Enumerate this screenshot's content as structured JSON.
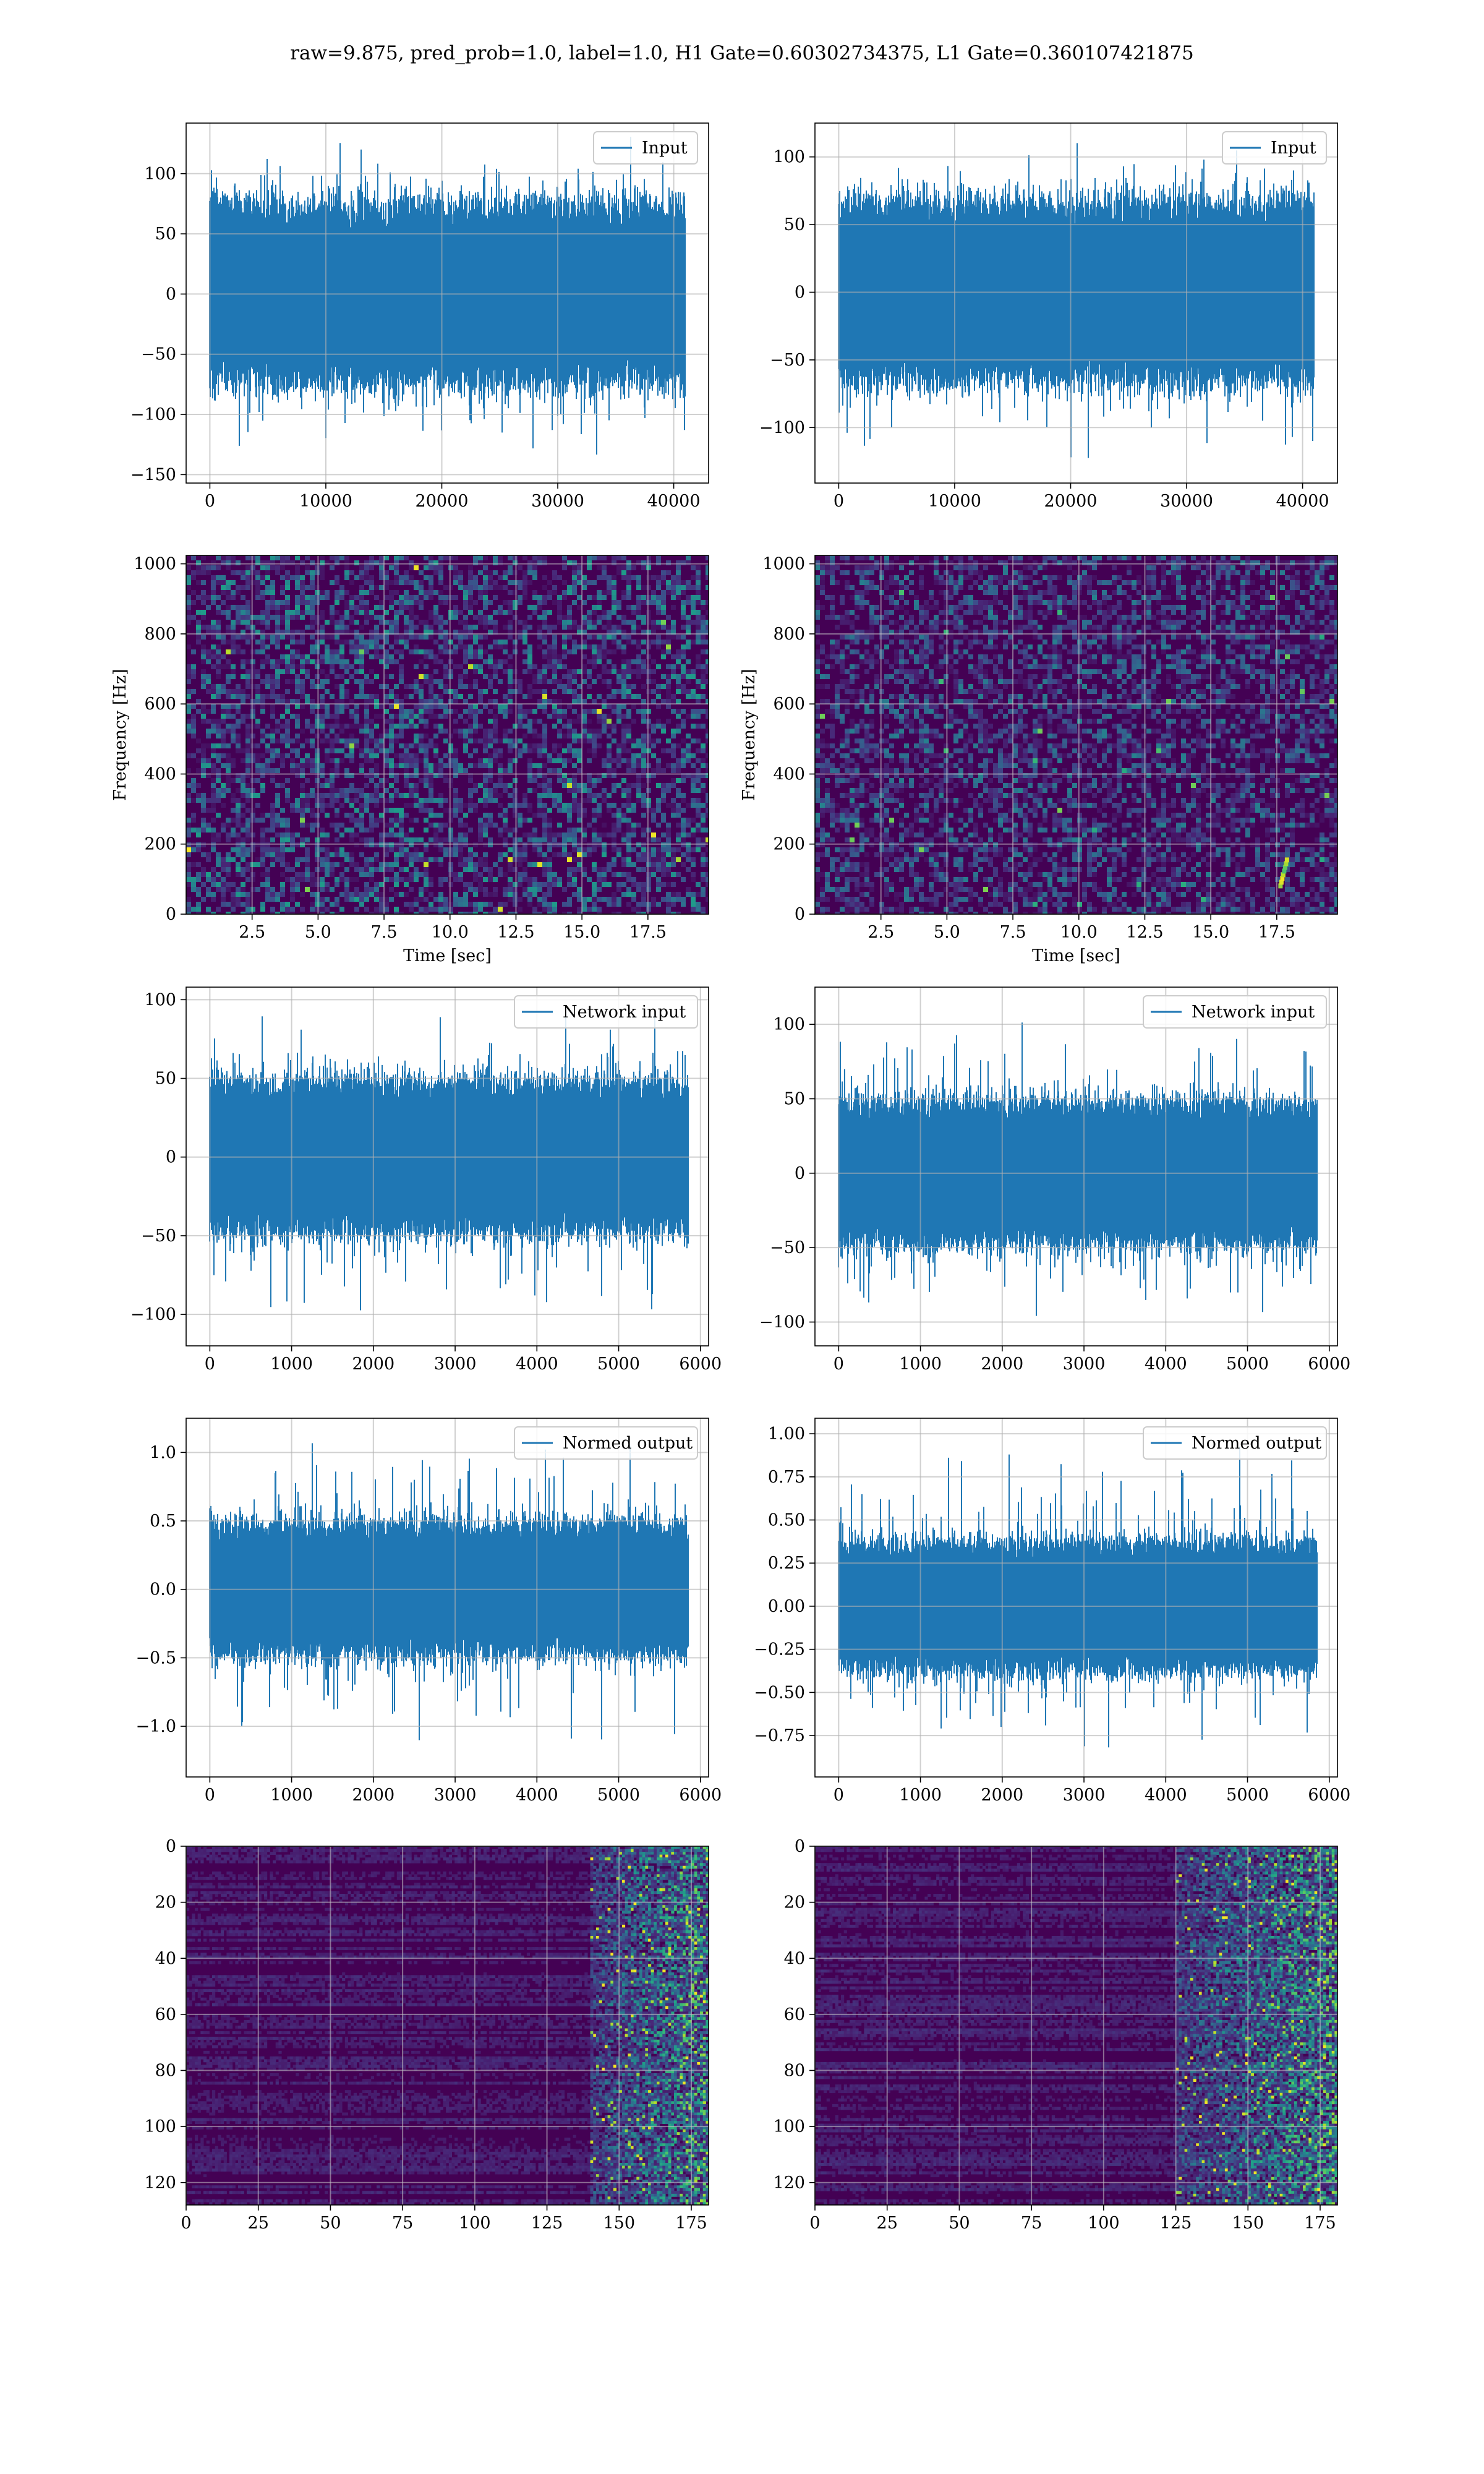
{
  "figure": {
    "suptitle": "raw=9.875, pred_prob=1.0, label=1.0, H1 Gate=0.60302734375, L1 Gate=0.360107421875",
    "colors": {
      "line": "#1f77b4",
      "grid": "#b0b0b0",
      "viridis_low": "#440154",
      "viridis_mid": "#21918c",
      "viridis_high": "#fde725"
    }
  },
  "chart_data": [
    {
      "type": "line",
      "row": 1,
      "col": 1,
      "name": "input-h1",
      "series": [
        {
          "name": "Input"
        }
      ],
      "legend": "top-right",
      "xlim": [
        -2048,
        43008
      ],
      "xticks": [
        0,
        10000,
        20000,
        30000,
        40000
      ],
      "ylim": [
        -157,
        142
      ],
      "yticks": [
        -150,
        -100,
        -50,
        0,
        50,
        100
      ],
      "signal": {
        "n": 40960,
        "envelope": [
          -70,
          70
        ],
        "extremes": [
          -145,
          134
        ]
      },
      "grid": true
    },
    {
      "type": "line",
      "row": 1,
      "col": 2,
      "name": "input-l1",
      "series": [
        {
          "name": "Input"
        }
      ],
      "legend": "top-right",
      "xlim": [
        -2048,
        43008
      ],
      "xticks": [
        0,
        10000,
        20000,
        30000,
        40000
      ],
      "ylim": [
        -141,
        125
      ],
      "yticks": [
        -100,
        -50,
        0,
        50,
        100
      ],
      "signal": {
        "n": 40960,
        "envelope": [
          -62,
          62
        ],
        "extremes": [
          -130,
          117
        ]
      },
      "grid": true
    },
    {
      "type": "heatmap",
      "row": 2,
      "col": 1,
      "name": "spectrogram-h1",
      "xlabel": "Time [sec]",
      "ylabel": "Frequency [Hz]",
      "xlim": [
        0,
        19.8
      ],
      "xticks": [
        2.5,
        5.0,
        7.5,
        10.0,
        12.5,
        15.0,
        17.5
      ],
      "ylim": [
        0,
        1024
      ],
      "yticks": [
        0,
        200,
        400,
        600,
        800,
        1000
      ],
      "colormap": "viridis",
      "grid": true
    },
    {
      "type": "heatmap",
      "row": 2,
      "col": 2,
      "name": "spectrogram-l1",
      "xlabel": "Time [sec]",
      "ylabel": "Frequency [Hz]",
      "xlim": [
        0,
        19.8
      ],
      "xticks": [
        2.5,
        5.0,
        7.5,
        10.0,
        12.5,
        15.0,
        17.5
      ],
      "ylim": [
        0,
        1024
      ],
      "yticks": [
        0,
        200,
        400,
        600,
        800,
        1000
      ],
      "colormap": "viridis",
      "grid": true,
      "hotspots": [
        {
          "t": 17.7,
          "f": 70
        }
      ]
    },
    {
      "type": "line",
      "row": 3,
      "col": 1,
      "name": "network-input-h1",
      "series": [
        {
          "name": "Network input"
        }
      ],
      "legend": "top-right",
      "xlim": [
        -290,
        6100
      ],
      "xticks": [
        0,
        1000,
        2000,
        3000,
        4000,
        5000,
        6000
      ],
      "ylim": [
        -120,
        108
      ],
      "yticks": [
        -100,
        -50,
        0,
        50,
        100
      ],
      "signal": {
        "n": 5850,
        "envelope": [
          -45,
          45
        ],
        "extremes": [
          -110,
          100
        ]
      },
      "grid": true
    },
    {
      "type": "line",
      "row": 3,
      "col": 2,
      "name": "network-input-l1",
      "series": [
        {
          "name": "Network input"
        }
      ],
      "legend": "top-right",
      "xlim": [
        -290,
        6100
      ],
      "xticks": [
        0,
        1000,
        2000,
        3000,
        4000,
        5000,
        6000
      ],
      "ylim": [
        -116,
        125
      ],
      "yticks": [
        -100,
        -50,
        0,
        50,
        100
      ],
      "signal": {
        "n": 5850,
        "envelope": [
          -45,
          45
        ],
        "extremes": [
          -106,
          105
        ]
      },
      "grid": true
    },
    {
      "type": "line",
      "row": 4,
      "col": 1,
      "name": "normed-output-h1",
      "series": [
        {
          "name": "Normed output"
        }
      ],
      "legend": "top-right",
      "xlim": [
        -290,
        6100
      ],
      "xticks": [
        0,
        1000,
        2000,
        3000,
        4000,
        5000,
        6000
      ],
      "ylim": [
        -1.37,
        1.25
      ],
      "yticks": [
        -1.0,
        -0.5,
        0.0,
        0.5,
        1.0
      ],
      "signal": {
        "n": 5850,
        "envelope": [
          -0.45,
          0.45
        ],
        "extremes": [
          -1.23,
          1.12
        ]
      },
      "grid": true
    },
    {
      "type": "line",
      "row": 4,
      "col": 2,
      "name": "normed-output-l1",
      "series": [
        {
          "name": "Normed output"
        }
      ],
      "legend": "top-right",
      "xlim": [
        -290,
        6100
      ],
      "xticks": [
        0,
        1000,
        2000,
        3000,
        4000,
        5000,
        6000
      ],
      "ylim": [
        -0.99,
        1.09
      ],
      "yticks": [
        -0.75,
        -0.5,
        -0.25,
        0.0,
        0.25,
        0.5,
        0.75,
        1.0
      ],
      "signal": {
        "n": 5850,
        "envelope": [
          -0.35,
          0.35
        ],
        "extremes": [
          -0.9,
          1.01
        ]
      },
      "grid": true
    },
    {
      "type": "heatmap",
      "row": 5,
      "col": 1,
      "name": "feature-map-h1",
      "xlim": [
        0,
        181
      ],
      "xticks": [
        0,
        25,
        50,
        75,
        100,
        125,
        150,
        175
      ],
      "ylim": [
        128,
        0
      ],
      "yticks": [
        0,
        20,
        40,
        60,
        80,
        100,
        120
      ],
      "colormap": "viridis",
      "grid": true,
      "hot_columns": [
        140,
        181
      ]
    },
    {
      "type": "heatmap",
      "row": 5,
      "col": 2,
      "name": "feature-map-l1",
      "xlim": [
        0,
        181
      ],
      "xticks": [
        0,
        25,
        50,
        75,
        100,
        125,
        150,
        175
      ],
      "ylim": [
        128,
        0
      ],
      "yticks": [
        0,
        20,
        40,
        60,
        80,
        100,
        120
      ],
      "colormap": "viridis",
      "grid": true,
      "hot_columns": [
        125,
        181
      ]
    }
  ]
}
